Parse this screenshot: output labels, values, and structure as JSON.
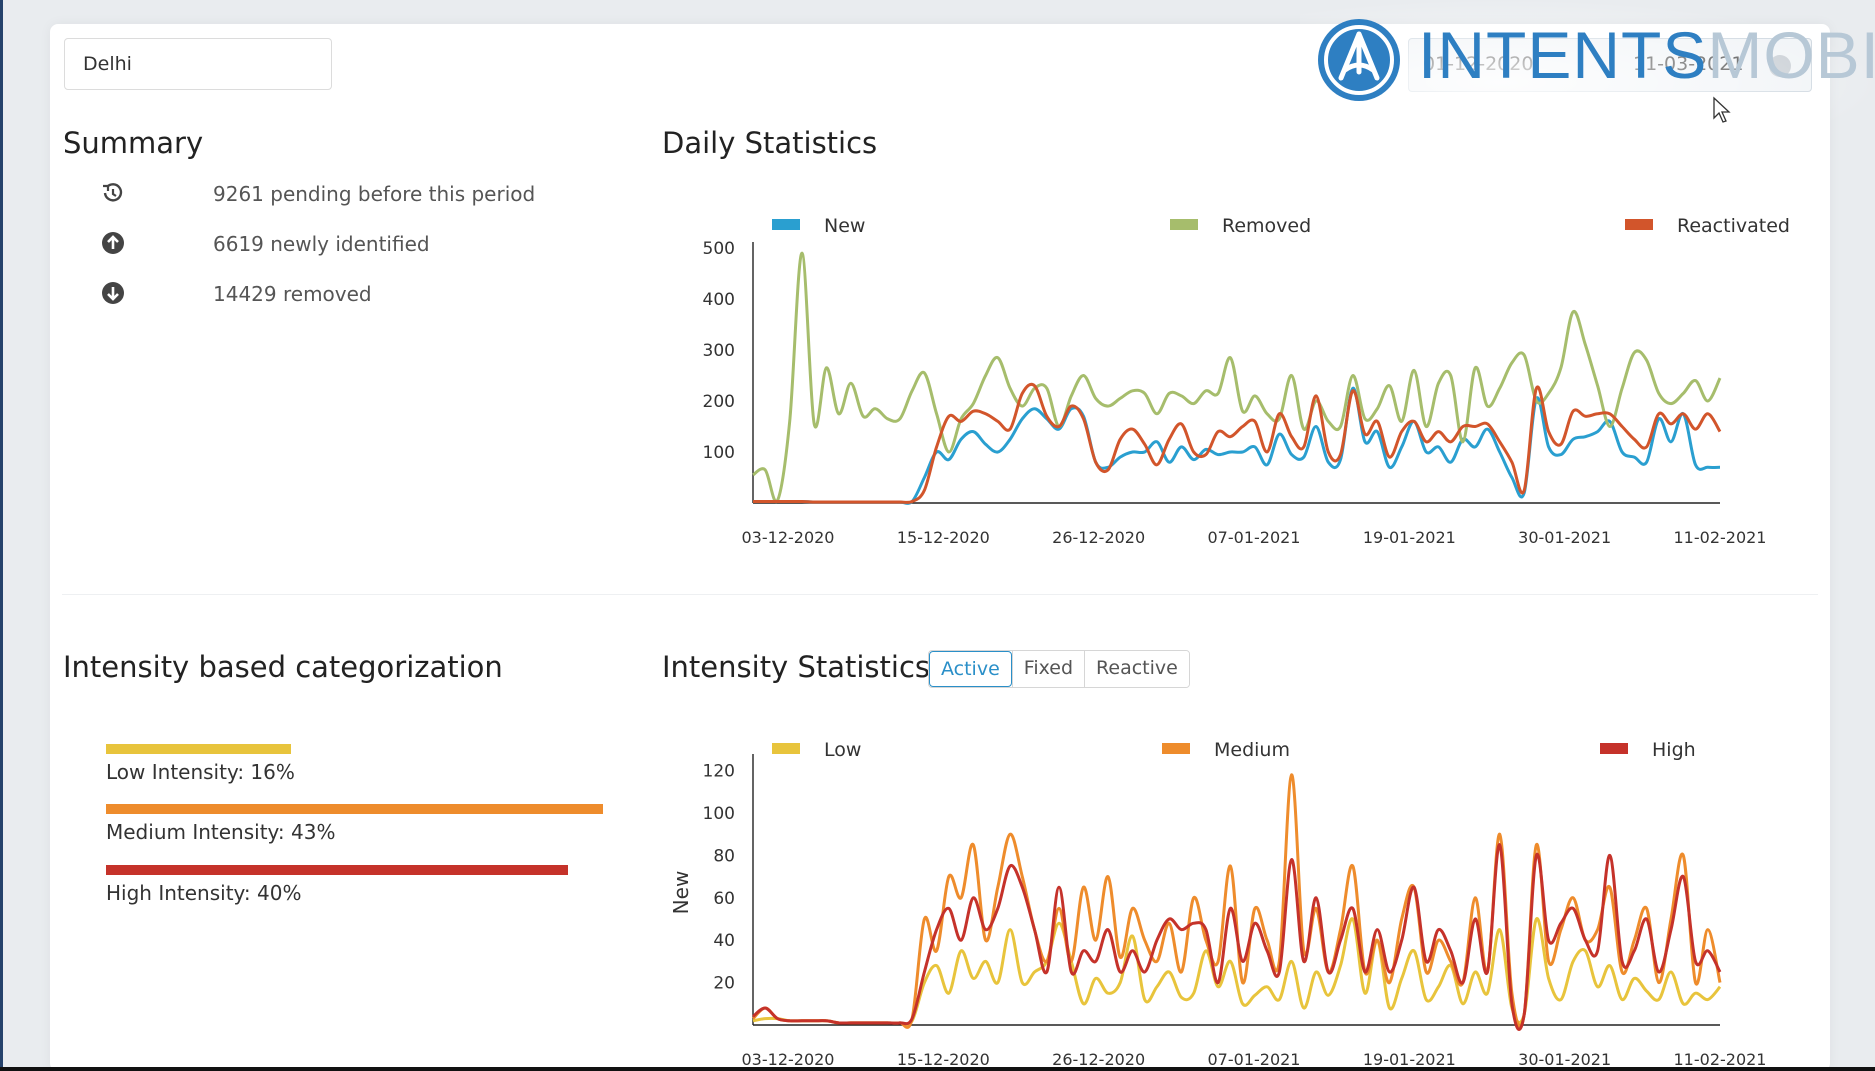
{
  "filters": {
    "city_value": "Delhi",
    "date_from": "01-12-2020",
    "date_to": "11-03-2021"
  },
  "brand": {
    "logo_text_bold": "INTENTS",
    "logo_text_light": "MOBI",
    "logo_color": "#2e7fc2"
  },
  "summary": {
    "title": "Summary",
    "items": [
      {
        "icon": "history-icon",
        "text": "9261 pending before this period"
      },
      {
        "icon": "arrow-up-circle-icon",
        "text": "6619 newly identified"
      },
      {
        "icon": "arrow-down-circle-icon",
        "text": "14429 removed"
      }
    ]
  },
  "daily": {
    "title": "Daily Statistics"
  },
  "intensity_categorization": {
    "title": "Intensity based categorization",
    "items": [
      {
        "label": "Low Intensity: 16%",
        "percent": 16,
        "color": "#e8c43c"
      },
      {
        "label": "Medium Intensity: 43%",
        "percent": 43,
        "color": "#ee8c2c"
      },
      {
        "label": "High Intensity: 40%",
        "percent": 40,
        "color": "#c5322a"
      }
    ]
  },
  "intensity_stats": {
    "title": "Intensity Statistics",
    "tabs": [
      {
        "label": "Active",
        "active": true
      },
      {
        "label": "Fixed",
        "active": false
      },
      {
        "label": "Reactive",
        "active": false
      }
    ]
  },
  "chart_data": [
    {
      "type": "line",
      "title": "Daily Statistics",
      "x_ticks": [
        "03-12-2020",
        "15-12-2020",
        "26-12-2020",
        "07-01-2021",
        "19-01-2021",
        "30-01-2021",
        "11-02-2021"
      ],
      "y_ticks": [
        100,
        200,
        300,
        400,
        500
      ],
      "ylim": [
        0,
        500
      ],
      "legend_position": "top",
      "grid": false,
      "series": [
        {
          "name": "New",
          "color": "#2a9fd0",
          "values": [
            3,
            3,
            3,
            3,
            3,
            2,
            2,
            2,
            2,
            2,
            2,
            2,
            2,
            3,
            50,
            100,
            85,
            125,
            140,
            115,
            100,
            125,
            165,
            185,
            165,
            145,
            185,
            170,
            80,
            70,
            90,
            100,
            100,
            120,
            80,
            110,
            85,
            105,
            95,
            100,
            100,
            110,
            75,
            135,
            95,
            90,
            150,
            80,
            85,
            225,
            120,
            140,
            70,
            110,
            160,
            100,
            110,
            80,
            125,
            110,
            145,
            100,
            50,
            20,
            205,
            110,
            95,
            125,
            130,
            140,
            160,
            100,
            90,
            80,
            165,
            120,
            175,
            75,
            70,
            70
          ]
        },
        {
          "name": "Removed",
          "color": "#a6bd6c",
          "values": [
            55,
            65,
            5,
            160,
            490,
            155,
            265,
            175,
            235,
            170,
            185,
            165,
            165,
            220,
            255,
            175,
            100,
            165,
            195,
            250,
            285,
            225,
            190,
            225,
            225,
            150,
            210,
            250,
            205,
            190,
            205,
            220,
            215,
            175,
            215,
            210,
            195,
            220,
            215,
            285,
            180,
            210,
            175,
            165,
            250,
            145,
            200,
            160,
            150,
            250,
            165,
            185,
            230,
            160,
            260,
            150,
            235,
            250,
            120,
            265,
            190,
            225,
            275,
            290,
            200,
            215,
            265,
            375,
            310,
            230,
            150,
            225,
            295,
            280,
            215,
            195,
            215,
            240,
            200,
            245
          ]
        },
        {
          "name": "Reactivated",
          "color": "#d2552b",
          "values": [
            3,
            3,
            3,
            3,
            3,
            2,
            2,
            2,
            2,
            2,
            2,
            2,
            2,
            3,
            25,
            110,
            170,
            160,
            180,
            175,
            160,
            145,
            215,
            230,
            170,
            150,
            190,
            165,
            80,
            65,
            125,
            145,
            115,
            75,
            125,
            155,
            100,
            95,
            140,
            130,
            150,
            160,
            100,
            175,
            130,
            110,
            210,
            100,
            95,
            220,
            135,
            160,
            90,
            140,
            160,
            120,
            140,
            120,
            150,
            150,
            155,
            120,
            80,
            25,
            225,
            140,
            115,
            180,
            170,
            175,
            175,
            150,
            125,
            110,
            175,
            155,
            175,
            145,
            175,
            140
          ]
        }
      ]
    },
    {
      "type": "line",
      "title": "Intensity Statistics",
      "ylabel": "New",
      "x_ticks": [
        "03-12-2020",
        "15-12-2020",
        "26-12-2020",
        "07-01-2021",
        "19-01-2021",
        "30-01-2021",
        "11-02-2021"
      ],
      "y_ticks": [
        20,
        40,
        60,
        80,
        100,
        120
      ],
      "ylim": [
        0,
        125
      ],
      "legend_position": "top",
      "grid": false,
      "series": [
        {
          "name": "Low",
          "color": "#e8c43c",
          "values": [
            2,
            3,
            3,
            2,
            2,
            2,
            2,
            1,
            1,
            1,
            1,
            1,
            1,
            2,
            20,
            28,
            15,
            35,
            22,
            30,
            20,
            45,
            20,
            25,
            30,
            48,
            30,
            10,
            22,
            15,
            20,
            42,
            12,
            18,
            25,
            13,
            15,
            35,
            18,
            30,
            10,
            14,
            18,
            12,
            30,
            8,
            25,
            14,
            28,
            50,
            15,
            40,
            8,
            22,
            35,
            12,
            18,
            28,
            10,
            25,
            15,
            45,
            8,
            5,
            50,
            22,
            12,
            30,
            35,
            18,
            28,
            12,
            22,
            16,
            12,
            25,
            10,
            15,
            12,
            18
          ]
        },
        {
          "name": "Medium",
          "color": "#ee8c2c",
          "values": [
            3,
            8,
            3,
            2,
            2,
            2,
            2,
            1,
            1,
            1,
            1,
            1,
            1,
            3,
            50,
            35,
            70,
            60,
            85,
            40,
            65,
            90,
            70,
            45,
            30,
            55,
            30,
            65,
            40,
            70,
            32,
            55,
            40,
            30,
            48,
            25,
            60,
            40,
            30,
            75,
            20,
            55,
            40,
            30,
            118,
            35,
            55,
            25,
            45,
            75,
            25,
            40,
            20,
            50,
            65,
            25,
            40,
            30,
            20,
            60,
            25,
            90,
            15,
            5,
            85,
            30,
            45,
            60,
            40,
            45,
            65,
            25,
            40,
            55,
            20,
            50,
            80,
            20,
            45,
            20
          ]
        },
        {
          "name": "High",
          "color": "#c5322a",
          "values": [
            4,
            8,
            3,
            2,
            2,
            2,
            2,
            1,
            1,
            1,
            1,
            1,
            1,
            3,
            25,
            45,
            55,
            40,
            60,
            45,
            55,
            75,
            65,
            45,
            25,
            65,
            25,
            35,
            30,
            45,
            25,
            35,
            25,
            40,
            50,
            45,
            48,
            45,
            20,
            55,
            30,
            48,
            35,
            25,
            78,
            30,
            60,
            25,
            40,
            55,
            25,
            45,
            25,
            40,
            65,
            30,
            45,
            35,
            20,
            50,
            25,
            85,
            10,
            5,
            80,
            40,
            48,
            55,
            40,
            35,
            80,
            30,
            35,
            50,
            25,
            45,
            70,
            30,
            35,
            25
          ]
        }
      ]
    }
  ]
}
